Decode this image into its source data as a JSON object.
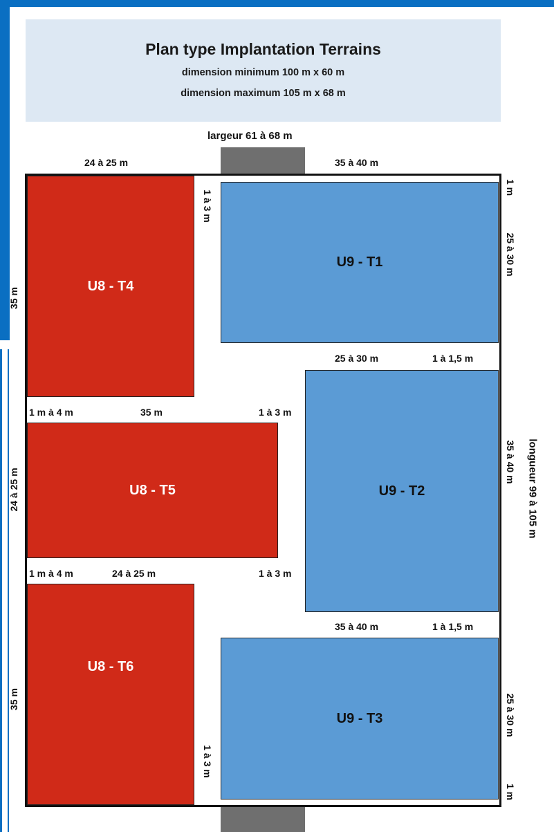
{
  "header": {
    "title": "Plan type Implantation Terrains",
    "min_dimension": "dimension minimum 100 m x 60 m",
    "max_dimension": "dimension maximum 105 m x 68 m"
  },
  "labels": {
    "width": "largeur 61 à 68 m",
    "length": "longueur 99 à 105 m",
    "top_left_width": "24 à 25 m",
    "top_right_width": "35 à 40 m",
    "gap_top_vertical": "1 à 3 m",
    "right_top_margin": "1 m",
    "t1_height": "25 à 30 m",
    "t4_height": "35 m",
    "t2_width_label": "25 à 30 m",
    "t2_margin_label": "1 à 1,5 m",
    "t5_left_margin": "1 m à 4 m",
    "t5_width": "35 m",
    "t5_right_gap": "1 à 3 m",
    "t5_height": "24 à 25 m",
    "t2_height": "35 à 40 m",
    "t6_left_margin": "1 m à 4 m",
    "t6_width": "24 à 25 m",
    "t6_right_gap": "1 à 3 m",
    "t3_width_label": "35 à 40 m",
    "t3_margin_label": "1 à 1,5 m",
    "t6_height": "35 m",
    "t3_height": "25 à 30 m",
    "gap_bottom_vertical": "1 à 3 m",
    "right_bottom_margin": "1 m"
  },
  "fields": {
    "t1": "U9 - T1",
    "t2": "U9 - T2",
    "t3": "U9 - T3",
    "t4": "U8 - T4",
    "t5": "U8 - T5",
    "t6": "U8 - T6"
  },
  "colors": {
    "u8": "#d02a18",
    "u9": "#5b9bd5",
    "frame": "#0a6fc2",
    "header_bg": "#dde8f3",
    "goal": "#6f6f6f"
  }
}
